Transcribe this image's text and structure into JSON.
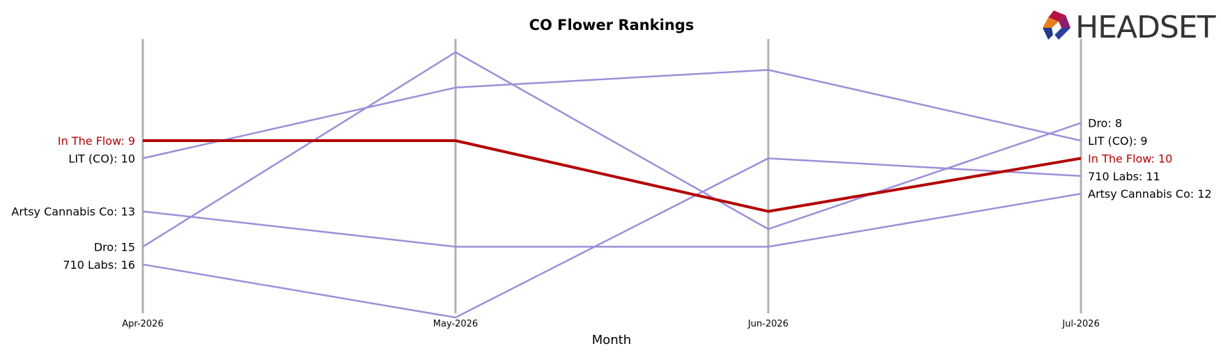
{
  "logo": {
    "text": "HEADSET"
  },
  "chart_data": {
    "type": "line",
    "title": "CO Flower Rankings",
    "xlabel": "Month",
    "ylabel": "",
    "x": [
      "Apr-2026",
      "May-2026",
      "Jun-2026",
      "Jul-2026"
    ],
    "y_inverted": true,
    "ylim": [
      20,
      4
    ],
    "grid": false,
    "series": [
      {
        "name": "In The Flow",
        "values": [
          9,
          9,
          13,
          10
        ],
        "color": "#b30000",
        "highlight": true
      },
      {
        "name": "LIT (CO)",
        "values": [
          10,
          6,
          5,
          9
        ],
        "color": "#9b8fd9"
      },
      {
        "name": "Artsy Cannabis Co",
        "values": [
          13,
          15,
          15,
          12
        ],
        "color": "#9b8fd9"
      },
      {
        "name": "Dro",
        "values": [
          15,
          4,
          14,
          8
        ],
        "color": "#9b8fd9"
      },
      {
        "name": "710 Labs",
        "values": [
          16,
          19,
          10,
          11
        ],
        "color": "#9b8fd9"
      }
    ],
    "colors": {
      "axis_line": "#b0b0b0",
      "highlight_label": "#b30000",
      "label": "#000000"
    }
  }
}
